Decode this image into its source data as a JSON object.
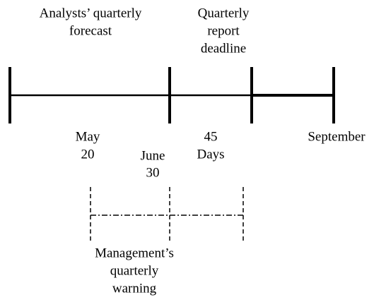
{
  "labels": {
    "analysts_forecast": [
      "Analysts’ quarterly",
      "forecast"
    ],
    "report_deadline": [
      "Quarterly",
      "report",
      "deadline"
    ],
    "may_20": [
      "May",
      "20"
    ],
    "june_30": [
      "June",
      "30"
    ],
    "days_45": [
      "45",
      "Days"
    ],
    "september": [
      "September"
    ],
    "management_warning": [
      "Management’s",
      "quarterly",
      "warning"
    ]
  }
}
